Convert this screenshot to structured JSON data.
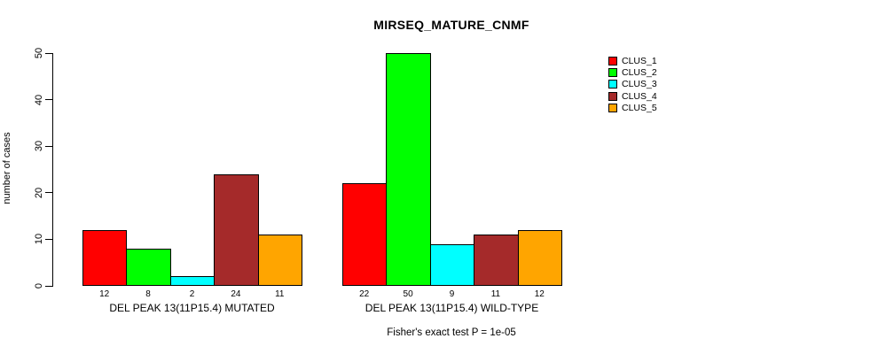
{
  "chart_data": {
    "type": "bar",
    "title": "MIRSEQ_MATURE_CNMF",
    "ylabel": "number of cases",
    "ylim": [
      0,
      50
    ],
    "yticks": [
      0,
      10,
      20,
      30,
      40,
      50
    ],
    "grid": false,
    "legend_position": "right",
    "categories": [
      "DEL PEAK 13(11P15.4) MUTATED",
      "DEL PEAK 13(11P15.4) WILD-TYPE"
    ],
    "series": [
      {
        "name": "CLUS_1",
        "color": "#FF0000",
        "values": [
          12,
          22
        ]
      },
      {
        "name": "CLUS_2",
        "color": "#00FF00",
        "values": [
          8,
          50
        ]
      },
      {
        "name": "CLUS_3",
        "color": "#00FFFF",
        "values": [
          2,
          9
        ]
      },
      {
        "name": "CLUS_4",
        "color": "#A52A2A",
        "values": [
          24,
          11
        ]
      },
      {
        "name": "CLUS_5",
        "color": "#FFA500",
        "values": [
          11,
          12
        ]
      }
    ],
    "bar_value_labels_shown": true,
    "annotation": "Fisher's exact test P = 1e-05",
    "axis_color": "#000000",
    "bar_border_color": "#000000"
  }
}
